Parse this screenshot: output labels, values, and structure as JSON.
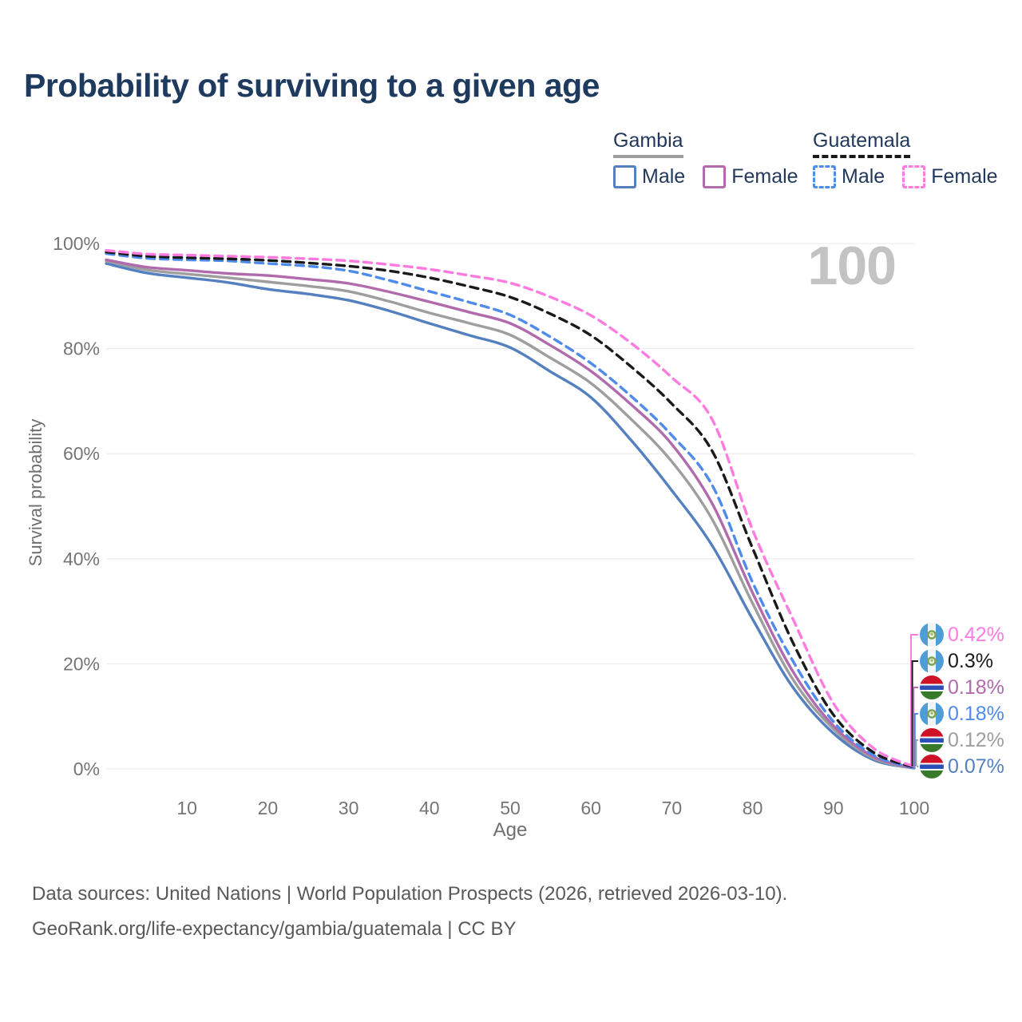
{
  "title": "Probability of surviving to a given age",
  "watermark_age": "100",
  "legend": {
    "groups": [
      {
        "name": "Gambia",
        "line_style": "solid",
        "line_color": "#9E9E9E",
        "items": [
          {
            "label": "Male",
            "color": "#5580C0",
            "dashed": false
          },
          {
            "label": "Female",
            "color": "#B16BAD",
            "dashed": false
          }
        ]
      },
      {
        "name": "Guatemala",
        "line_style": "dashed",
        "line_color": "#1A1A1A",
        "items": [
          {
            "label": "Male",
            "color": "#4F8BEA",
            "dashed": true
          },
          {
            "label": "Female",
            "color": "#FF7BE0",
            "dashed": true
          }
        ]
      }
    ]
  },
  "chart_data": {
    "type": "line",
    "title": "Probability of surviving to a given age",
    "xlabel": "Age",
    "ylabel": "Survival probability",
    "xlim": [
      0,
      100
    ],
    "ylim": [
      0,
      100
    ],
    "grid": "horizontal",
    "highlighted_age": 100,
    "x_ticks": [
      10,
      20,
      30,
      40,
      50,
      60,
      70,
      80,
      90,
      100
    ],
    "y_ticks": [
      {
        "value": 0,
        "label": "0%"
      },
      {
        "value": 20,
        "label": "20%"
      },
      {
        "value": 40,
        "label": "40%"
      },
      {
        "value": 60,
        "label": "60%"
      },
      {
        "value": 80,
        "label": "80%"
      },
      {
        "value": 100,
        "label": "100%"
      }
    ],
    "x": [
      0,
      5,
      10,
      15,
      20,
      25,
      30,
      35,
      40,
      45,
      50,
      55,
      60,
      65,
      70,
      75,
      80,
      85,
      90,
      95,
      100
    ],
    "series": [
      {
        "name": "Gambia Male",
        "color": "#5580C0",
        "dashed": false,
        "values": [
          96.2,
          94.4,
          93.5,
          92.6,
          91.3,
          90.4,
          89.2,
          87.2,
          84.8,
          82.5,
          80.2,
          75.6,
          70.7,
          62.5,
          53.0,
          42.5,
          28.5,
          15.5,
          6.8,
          1.7,
          0.07
        ]
      },
      {
        "name": "Gambia Total",
        "color": "#9E9E9E",
        "dashed": false,
        "values": [
          96.7,
          95.0,
          94.2,
          93.5,
          92.7,
          91.9,
          90.9,
          89.0,
          86.8,
          84.8,
          82.6,
          78.2,
          73.4,
          66.5,
          58.5,
          47.5,
          31.5,
          17.0,
          7.6,
          2.0,
          0.12
        ]
      },
      {
        "name": "Gambia Female",
        "color": "#B16BAD",
        "dashed": false,
        "values": [
          96.9,
          95.5,
          94.9,
          94.3,
          93.9,
          93.2,
          92.4,
          90.8,
          88.9,
          86.9,
          84.8,
          80.6,
          75.7,
          69.3,
          61.8,
          50.5,
          33.5,
          18.5,
          8.2,
          2.3,
          0.18
        ]
      },
      {
        "name": "Guatemala Male",
        "color": "#4F8BEA",
        "dashed": true,
        "values": [
          98.1,
          97.2,
          96.9,
          96.7,
          96.2,
          95.7,
          94.8,
          93.0,
          90.9,
          88.8,
          86.4,
          82.2,
          77.2,
          70.9,
          63.5,
          54.0,
          35.5,
          20.5,
          9.0,
          2.6,
          0.18
        ]
      },
      {
        "name": "Guatemala Total",
        "color": "#1A1A1A",
        "dashed": true,
        "values": [
          98.4,
          97.6,
          97.3,
          97.1,
          96.8,
          96.3,
          95.7,
          94.8,
          93.5,
          91.8,
          89.8,
          86.6,
          82.5,
          76.5,
          69.5,
          60.5,
          42.0,
          24.0,
          10.3,
          3.1,
          0.3
        ]
      },
      {
        "name": "Guatemala Female",
        "color": "#FF7BE0",
        "dashed": true,
        "values": [
          98.7,
          98.0,
          97.8,
          97.6,
          97.4,
          97.1,
          96.7,
          96.0,
          95.1,
          93.9,
          92.5,
          89.8,
          86.3,
          81.0,
          74.5,
          66.5,
          45.5,
          28.5,
          12.5,
          3.9,
          0.42
        ]
      }
    ],
    "end_labels": [
      {
        "series": "Guatemala Female",
        "value": "0.42%",
        "color": "#FF7BE0",
        "flag": "guatemala"
      },
      {
        "series": "Guatemala Total",
        "value": "0.3%",
        "color": "#1A1A1A",
        "flag": "guatemala"
      },
      {
        "series": "Gambia Female",
        "value": "0.18%",
        "color": "#B16BAD",
        "flag": "gambia"
      },
      {
        "series": "Guatemala Male",
        "value": "0.18%",
        "color": "#4F8BEA",
        "flag": "guatemala"
      },
      {
        "series": "Gambia Total",
        "value": "0.12%",
        "color": "#9E9E9E",
        "flag": "gambia"
      },
      {
        "series": "Gambia Male",
        "value": "0.07%",
        "color": "#5580C0",
        "flag": "gambia"
      }
    ]
  },
  "footer": {
    "line1": "Data sources: United Nations | World Population Prospects (2026, retrieved 2026-03-10).",
    "line2": "GeoRank.org/life-expectancy/gambia/guatemala | CC BY"
  }
}
